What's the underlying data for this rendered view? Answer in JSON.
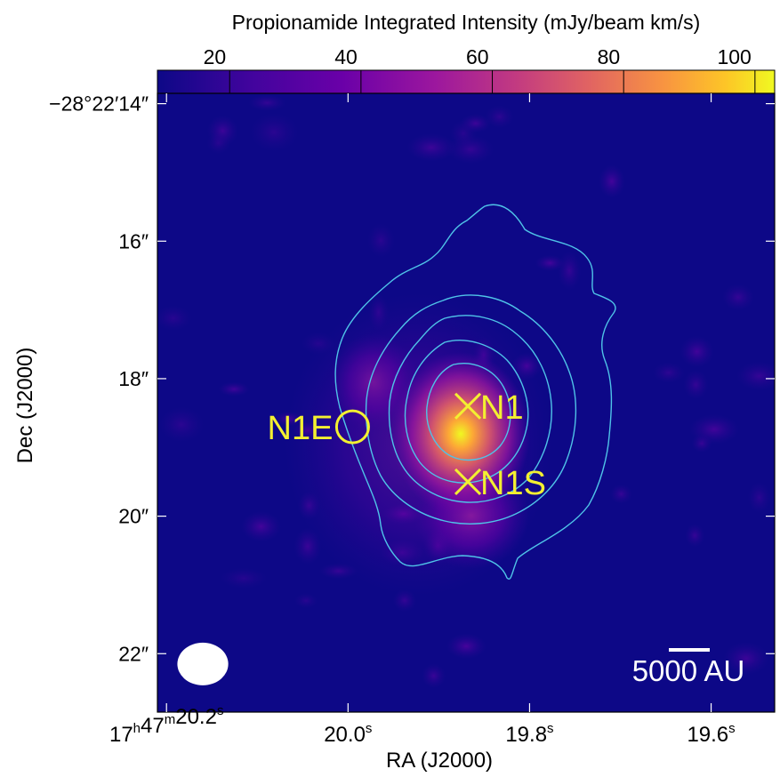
{
  "chart_data": {
    "type": "heatmap",
    "colorbar": {
      "title": "Propionamide Integrated Intensity (mJy/beam km/s)",
      "ticks": [
        20,
        40,
        60,
        80,
        100
      ],
      "tick_labels": [
        "20",
        "40",
        "60",
        "80",
        "100"
      ],
      "range": [
        9,
        103
      ],
      "colormap": "plasma"
    },
    "xlabel": "RA (J2000)",
    "ylabel": "Dec (J2000)",
    "x_ticks": [
      {
        "value_s": 20.2,
        "h": "17",
        "hsup": "h",
        "m": "47",
        "msup": "m",
        "s": "20.2",
        "ssup": "s"
      },
      {
        "value_s": 20.0,
        "s": "20.0",
        "ssup": "s"
      },
      {
        "value_s": 19.8,
        "s": "19.8",
        "ssup": "s"
      },
      {
        "value_s": 19.6,
        "s": "19.6",
        "ssup": "s"
      }
    ],
    "xlim_s": [
      20.21,
      19.53
    ],
    "y_ticks": [
      {
        "value": 14,
        "label": "−28°22′14″"
      },
      {
        "value": 16,
        "label": "16″"
      },
      {
        "value": 18,
        "label": "18″"
      },
      {
        "value": 20,
        "label": "20″"
      },
      {
        "value": 22,
        "label": "22″"
      }
    ],
    "ylim_arcsec": [
      13.85,
      22.85
    ],
    "sources": [
      {
        "name": "N1",
        "marker": "x",
        "ra_s": 19.868,
        "dec_arcsec": 18.4
      },
      {
        "name": "N1S",
        "marker": "x",
        "ra_s": 19.868,
        "dec_arcsec": 19.5
      },
      {
        "name": "N1E",
        "marker": "circle",
        "ra_s": 19.995,
        "dec_arcsec": 18.7
      }
    ],
    "emission_peak": {
      "ra_s": 19.86,
      "dec_arcsec": 18.7,
      "peak_value": 103
    },
    "contours": {
      "color": "#4fc3e8",
      "count": 5
    },
    "beam": {
      "ra_s": 20.16,
      "dec_arcsec": 22.15,
      "major_arcsec": 0.74,
      "minor_arcsec": 0.62,
      "color": "#ffffff"
    },
    "scale_bar": {
      "label": "5000 AU"
    },
    "colors": {
      "background": "#0d0887",
      "marker": "#f3f031",
      "contour": "#4fc3e8",
      "text_overlay": "#ffffff"
    }
  }
}
